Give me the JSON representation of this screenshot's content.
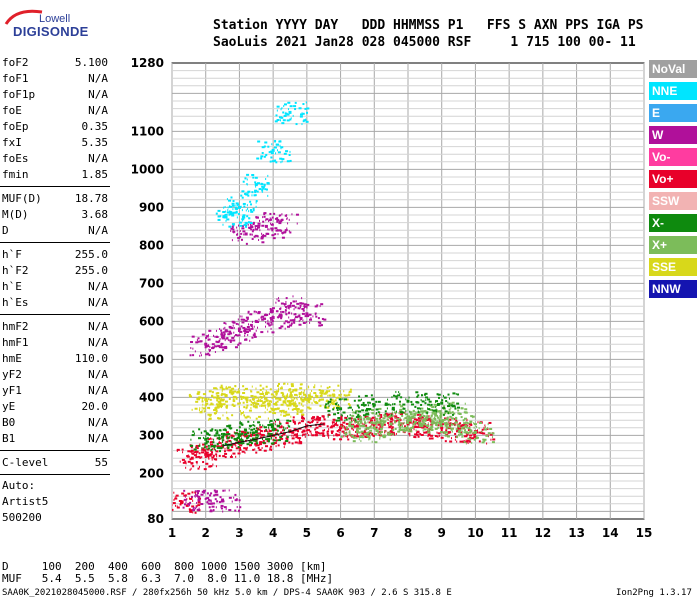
{
  "logo": {
    "line1": "Lowell",
    "line2": "DIGISONDE"
  },
  "header": {
    "line1": "Station YYYY DAY   DDD HHMMSS P1   FFS S AXN PPS IGA PS",
    "line2": "SaoLuis 2021 Jan28 028 045000 RSF     1 715 100 00- 11"
  },
  "params_top": [
    {
      "name": "foF2",
      "value": "5.100"
    },
    {
      "name": "foF1",
      "value": "N/A"
    },
    {
      "name": "foF1p",
      "value": "N/A"
    },
    {
      "name": "foE",
      "value": "N/A"
    },
    {
      "name": "foEp",
      "value": "0.35"
    },
    {
      "name": "fxI",
      "value": "5.35"
    },
    {
      "name": "foEs",
      "value": "N/A"
    },
    {
      "name": "fmin",
      "value": "1.85"
    }
  ],
  "params_mid": [
    {
      "name": "MUF(D)",
      "value": "18.78"
    },
    {
      "name": "M(D)",
      "value": "3.68"
    },
    {
      "name": "D",
      "value": "N/A"
    }
  ],
  "params_h": [
    {
      "name": "h`F",
      "value": "255.0"
    },
    {
      "name": "h`F2",
      "value": "255.0"
    },
    {
      "name": "h`E",
      "value": "N/A"
    },
    {
      "name": "h`Es",
      "value": "N/A"
    }
  ],
  "params_hm": [
    {
      "name": "hmF2",
      "value": "N/A"
    },
    {
      "name": "hmF1",
      "value": "N/A"
    },
    {
      "name": "hmE",
      "value": "110.0"
    },
    {
      "name": "yF2",
      "value": "N/A"
    },
    {
      "name": "yF1",
      "value": "N/A"
    },
    {
      "name": "yE",
      "value": "20.0"
    },
    {
      "name": "B0",
      "value": "N/A"
    },
    {
      "name": "B1",
      "value": "N/A"
    }
  ],
  "clevel": {
    "name": "C-level",
    "value": "55"
  },
  "auto": {
    "line1": "Auto:",
    "line2": "Artist5",
    "line3": "500200"
  },
  "dtable": {
    "row1": "D     100  200  400  600  800 1000 1500 3000 [km]",
    "row2": "MUF   5.4  5.5  5.8  6.3  7.0  8.0 11.0 18.8 [MHz]"
  },
  "footer": {
    "left": "SAA0K_2021028045000.RSF / 280fx256h 50 kHz 5.0 km / DPS-4 SAA0K 903 / 2.6 S 315.8 E",
    "right": "Ion2Png 1.3.17"
  },
  "legend": [
    {
      "label": "NoVal",
      "color": "#a0a0a0"
    },
    {
      "label": "NNE",
      "color": "#00e5ff"
    },
    {
      "label": "E",
      "color": "#3aa8f0"
    },
    {
      "label": "W",
      "color": "#b0109a"
    },
    {
      "label": "Vo-",
      "color": "#ff3ca0"
    },
    {
      "label": "Vo+",
      "color": "#e8002a"
    },
    {
      "label": "SSW",
      "color": "#f2b3b3"
    },
    {
      "label": "X-",
      "color": "#0e8a0e"
    },
    {
      "label": "X+",
      "color": "#7cbc5a"
    },
    {
      "label": "SSE",
      "color": "#d8d81a"
    },
    {
      "label": "NNW",
      "color": "#1414b0"
    }
  ],
  "chart_data": {
    "type": "scatter",
    "title": "",
    "xlabel": "",
    "ylabel": "",
    "xlim": [
      1,
      15
    ],
    "ylim": [
      80,
      1280
    ],
    "x_ticks": [
      1,
      2,
      3,
      4,
      5,
      6,
      7,
      8,
      9,
      10,
      11,
      12,
      13,
      14,
      15
    ],
    "y_ticks": [
      80,
      200,
      300,
      400,
      500,
      600,
      700,
      800,
      900,
      1000,
      1100,
      1280
    ],
    "grid": true,
    "legend_placement": "right",
    "series": [
      {
        "name": "SSE",
        "color": "#d8d81a",
        "points": [
          [
            2.0,
            395
          ],
          [
            2.6,
            405
          ],
          [
            3.2,
            398
          ],
          [
            3.8,
            410
          ],
          [
            4.2,
            395
          ],
          [
            4.8,
            410
          ],
          [
            5.3,
            402
          ],
          [
            5.8,
            405
          ],
          [
            2.3,
            370
          ],
          [
            3.5,
            375
          ],
          [
            4.5,
            380
          ]
        ]
      },
      {
        "name": "Vo+",
        "color": "#e8002a",
        "points": [
          [
            2.5,
            272
          ],
          [
            3.0,
            282
          ],
          [
            3.5,
            290
          ],
          [
            4.0,
            300
          ],
          [
            4.5,
            310
          ],
          [
            5.0,
            325
          ],
          [
            5.5,
            330
          ],
          [
            6.0,
            320
          ],
          [
            6.5,
            325
          ],
          [
            7.0,
            330
          ],
          [
            7.5,
            335
          ],
          [
            8.0,
            330
          ],
          [
            8.5,
            325
          ],
          [
            9.0,
            320
          ],
          [
            9.5,
            315
          ],
          [
            10.0,
            310
          ],
          [
            1.6,
            240
          ],
          [
            2.0,
            250
          ],
          [
            1.3,
            125
          ]
        ]
      },
      {
        "name": "X+",
        "color": "#7cbc5a",
        "points": [
          [
            6.5,
            310
          ],
          [
            7.0,
            320
          ],
          [
            7.5,
            330
          ],
          [
            8.0,
            338
          ],
          [
            8.5,
            340
          ],
          [
            9.0,
            338
          ],
          [
            9.5,
            325
          ],
          [
            10.0,
            308
          ],
          [
            6.8,
            345
          ],
          [
            8.2,
            355
          ],
          [
            9.2,
            360
          ]
        ]
      },
      {
        "name": "W",
        "color": "#b0109a",
        "points": [
          [
            2.0,
            540
          ],
          [
            2.5,
            560
          ],
          [
            3.0,
            580
          ],
          [
            3.5,
            600
          ],
          [
            4.0,
            610
          ],
          [
            4.5,
            640
          ],
          [
            5.0,
            620
          ],
          [
            3.2,
            830
          ],
          [
            3.8,
            850
          ],
          [
            4.2,
            860
          ],
          [
            1.8,
            130
          ],
          [
            2.5,
            130
          ]
        ]
      },
      {
        "name": "NNE",
        "color": "#00e5ff",
        "points": [
          [
            3.0,
            900
          ],
          [
            3.5,
            960
          ],
          [
            4.0,
            1050
          ],
          [
            4.5,
            1150
          ],
          [
            2.8,
            880
          ]
        ]
      },
      {
        "name": "X-",
        "color": "#0e8a0e",
        "points": [
          [
            2.0,
            290
          ],
          [
            2.5,
            295
          ],
          [
            3.0,
            300
          ],
          [
            3.5,
            310
          ],
          [
            4.0,
            315
          ],
          [
            6.0,
            370
          ],
          [
            7.0,
            380
          ],
          [
            8.0,
            390
          ],
          [
            9.0,
            385
          ]
        ]
      }
    ]
  }
}
